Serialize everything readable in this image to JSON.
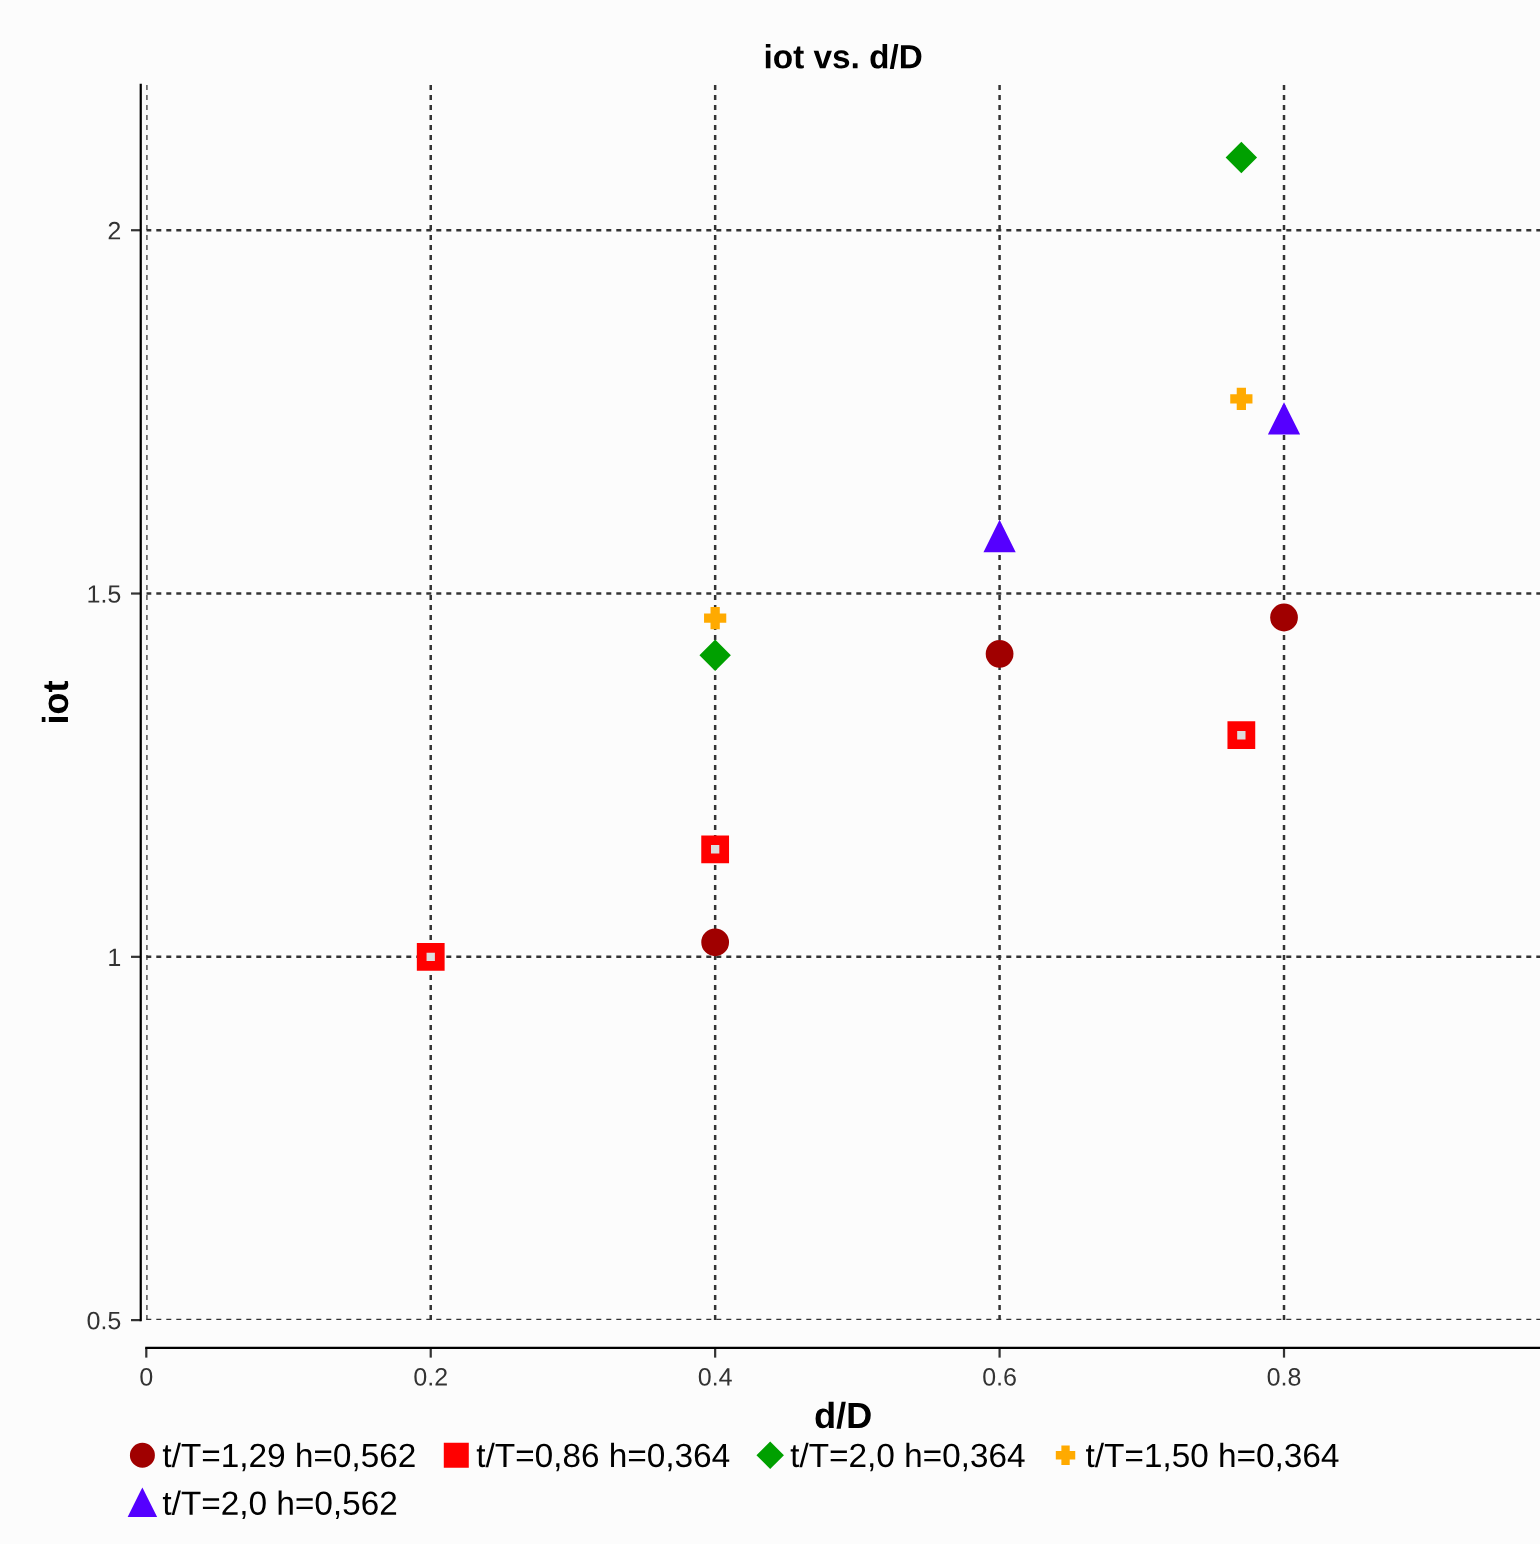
{
  "chart_data": {
    "type": "scatter",
    "title": "iot vs. d/D",
    "xlabel": "d/D",
    "ylabel": "iot",
    "xlim": [
      0,
      0.98
    ],
    "ylim": [
      0.5,
      2.2
    ],
    "xticks": [
      0,
      0.2,
      0.4,
      0.6,
      0.8
    ],
    "yticks": [
      0.5,
      1,
      1.5,
      2
    ],
    "grid": true,
    "legend": "bottom",
    "series": [
      {
        "name": "t/T=1,29 h=0,562",
        "color": "#a00000",
        "marker": "circle",
        "x": [
          0.4,
          0.6,
          0.8
        ],
        "values": [
          1.02,
          1.417,
          1.467
        ]
      },
      {
        "name": "t/T=2,0 h=0,562",
        "color": "#5500ff",
        "marker": "triangle",
        "x": [
          0.6,
          0.8
        ],
        "values": [
          1.578,
          1.74
        ]
      },
      {
        "name": "t/T=0,86 h=0,364",
        "color": "#ff0000",
        "marker": "square",
        "x": [
          0.2,
          0.4,
          0.77
        ],
        "values": [
          1.0,
          1.148,
          1.305
        ]
      },
      {
        "name": "t/T=2,0 h=0,364",
        "color": "#00a000",
        "marker": "diamond",
        "x": [
          0.4,
          0.77
        ],
        "values": [
          1.415,
          2.1
        ]
      },
      {
        "name": "t/T=1,50 h=0,364",
        "color": "#ffaa00",
        "marker": "cross",
        "x": [
          0.4,
          0.77
        ],
        "values": [
          1.466,
          1.768
        ]
      }
    ]
  }
}
